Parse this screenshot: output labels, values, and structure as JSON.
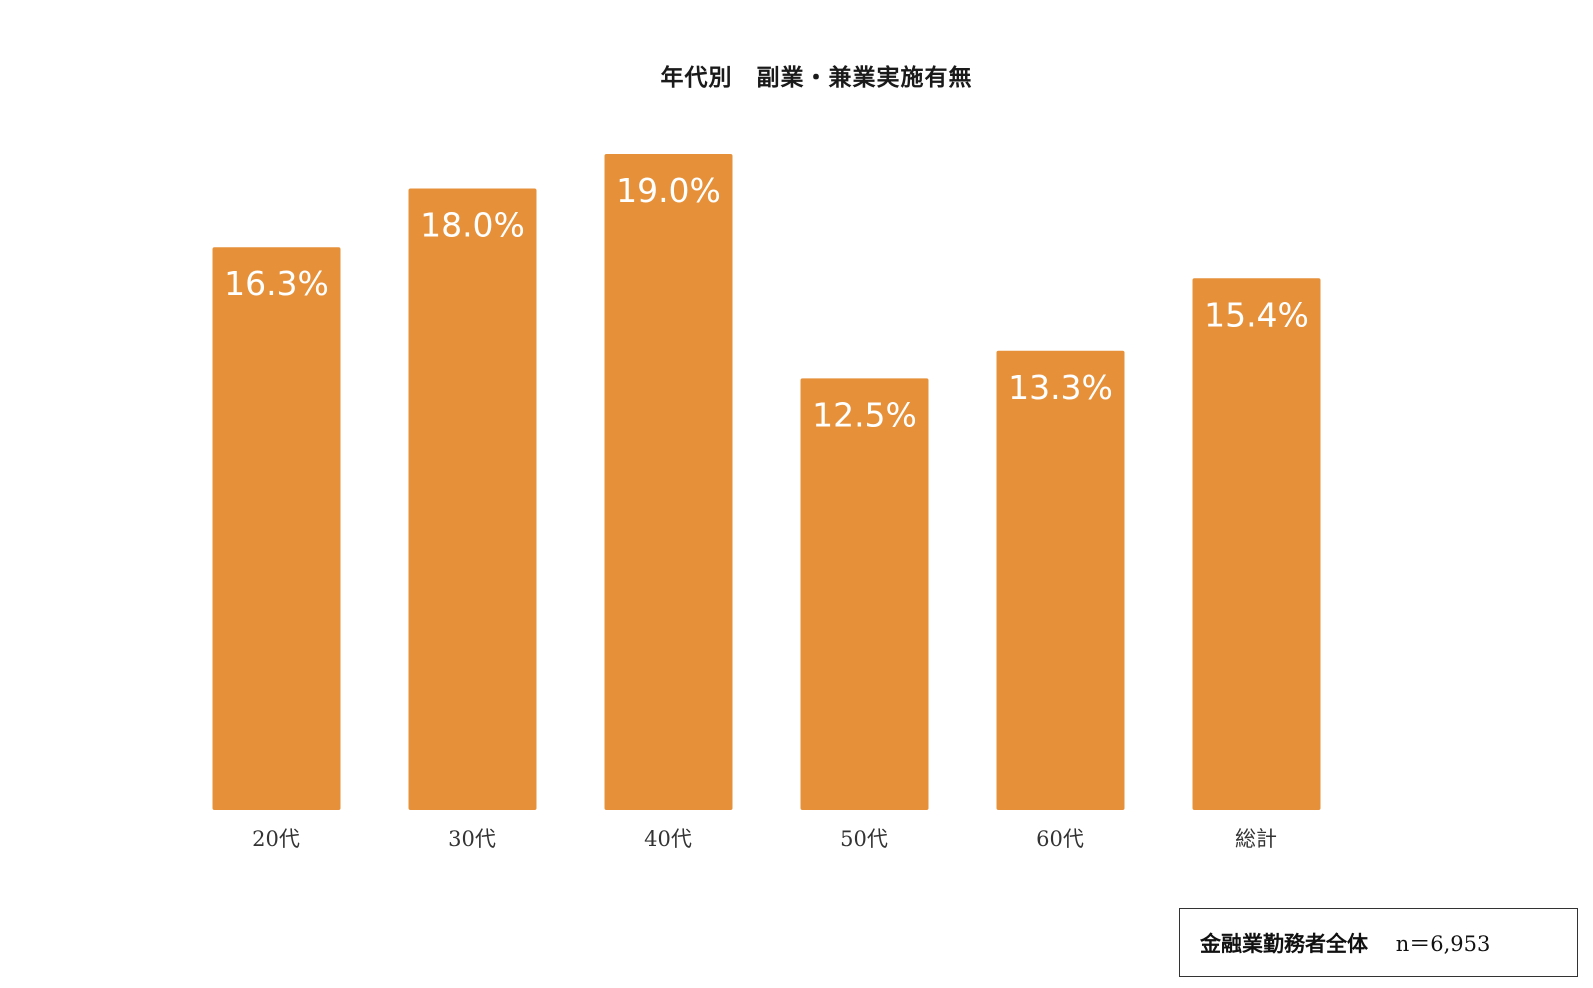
{
  "chart_data": {
    "type": "bar",
    "title": "年代別　副業・兼業実施有無",
    "categories": [
      "20代",
      "30代",
      "40代",
      "50代",
      "60代",
      "総計"
    ],
    "values": [
      16.3,
      18.0,
      19.0,
      12.5,
      13.3,
      15.4
    ],
    "value_labels": [
      "16.3%",
      "18.0%",
      "19.0%",
      "12.5%",
      "13.3%",
      "15.4%"
    ],
    "unit": "%",
    "ylim": [
      0,
      19.0
    ],
    "grid": false,
    "legend": "none",
    "bar_color": "#E6913A",
    "label_color": "#ffffff"
  },
  "footnote": {
    "group": "金融業勤務者全体",
    "sample": "n＝6,953"
  }
}
